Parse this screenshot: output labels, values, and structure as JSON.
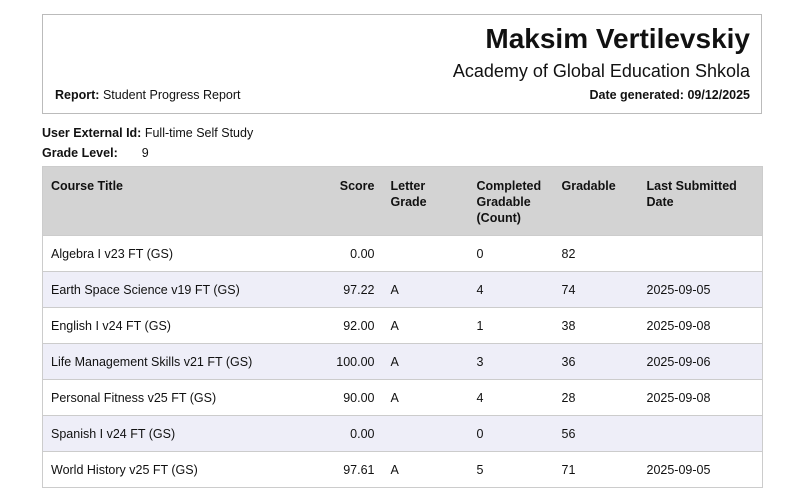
{
  "header": {
    "name": "Maksim Vertilevskiy",
    "school": "Academy of Global Education Shkola",
    "report_label": "Report:",
    "report_value": "Student Progress Report",
    "date_label": "Date generated:",
    "date_value": "09/12/2025"
  },
  "info": {
    "user_label": "User External Id:",
    "user_value": "Full-time Self Study",
    "grade_label": "Grade Level:",
    "grade_value": "9"
  },
  "table": {
    "columns": [
      "Course Title",
      "Score",
      "Letter Grade",
      "Completed Gradable (Count)",
      "Gradable",
      "Last Submitted Date"
    ],
    "rows": [
      [
        "Algebra I v23 FT (GS)",
        "0.00",
        null,
        "0",
        "82",
        null
      ],
      [
        "Earth Space Science v19 FT (GS)",
        "97.22",
        "A",
        "4",
        "74",
        "2025-09-05"
      ],
      [
        "English I v24 FT (GS)",
        "92.00",
        "A",
        "1",
        "38",
        "2025-09-08"
      ],
      [
        "Life Management Skills v21 FT (GS)",
        "100.00",
        "A",
        "3",
        "36",
        "2025-09-06"
      ],
      [
        "Personal Fitness v25 FT (GS)",
        "90.00",
        "A",
        "4",
        "28",
        "2025-09-08"
      ],
      [
        "Spanish I v24 FT (GS)",
        "0.00",
        null,
        "0",
        "56",
        null
      ],
      [
        "World History v25 FT (GS)",
        "97.61",
        "A",
        "5",
        "71",
        "2025-09-05"
      ]
    ]
  }
}
